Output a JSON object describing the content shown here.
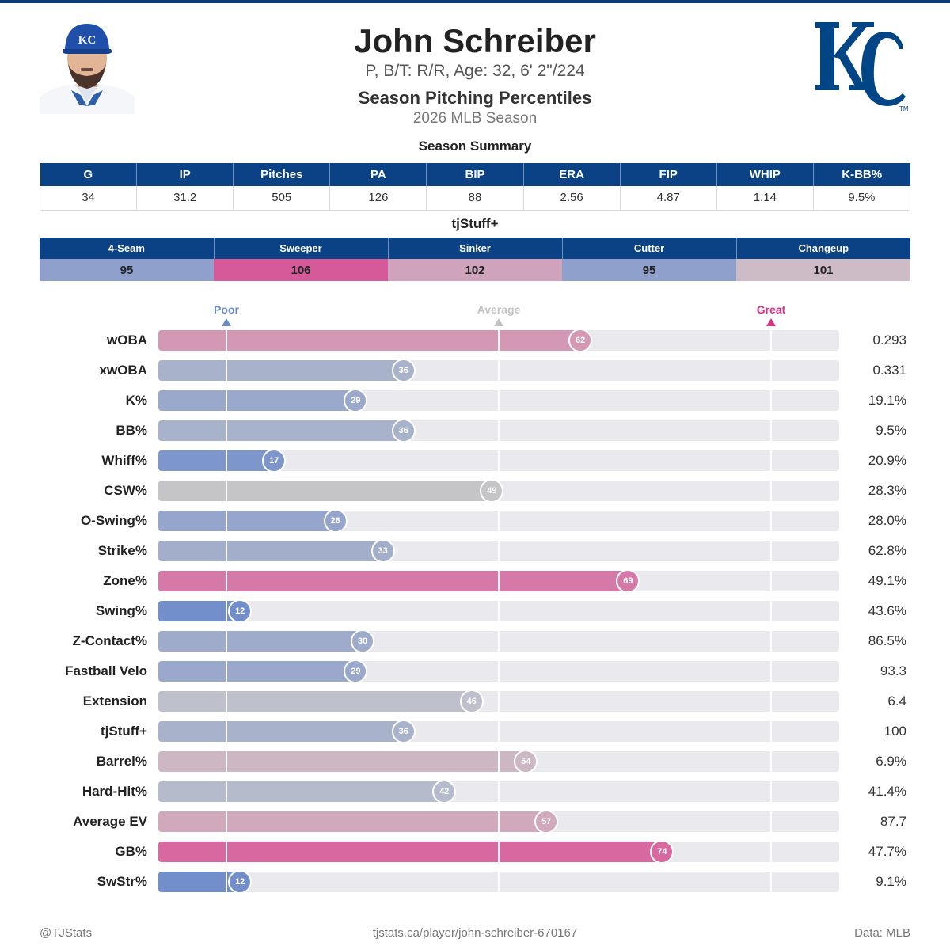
{
  "player": {
    "name": "John Schreiber",
    "info": "P, B/T: R/R, Age: 32, 6' 2\"/224"
  },
  "report": {
    "title": "Season Pitching Percentiles",
    "season": "2026 MLB Season"
  },
  "summary": {
    "title": "Season Summary",
    "headers": [
      "G",
      "IP",
      "Pitches",
      "PA",
      "BIP",
      "ERA",
      "FIP",
      "WHIP",
      "K-BB%"
    ],
    "values": [
      "34",
      "31.2",
      "505",
      "126",
      "88",
      "2.56",
      "4.87",
      "1.14",
      "9.5%"
    ]
  },
  "tjstuff": {
    "title": "tjStuff+",
    "pitches": [
      {
        "name": "4-Seam",
        "value": "95",
        "color": "#8fa0cc"
      },
      {
        "name": "Sweeper",
        "value": "106",
        "color": "#d65a9a"
      },
      {
        "name": "Sinker",
        "value": "102",
        "color": "#cfa3bb"
      },
      {
        "name": "Cutter",
        "value": "95",
        "color": "#8fa0cc"
      },
      {
        "name": "Changeup",
        "value": "101",
        "color": "#cdbcc6"
      }
    ]
  },
  "chart_data": {
    "type": "bar",
    "xlim": [
      0,
      100
    ],
    "legend": [
      {
        "label": "Poor",
        "percentile": 10,
        "color": "#6b8cc7"
      },
      {
        "label": "Average",
        "percentile": 50,
        "color": "#c4c4c4"
      },
      {
        "label": "Great",
        "percentile": 90,
        "color": "#d63384"
      }
    ],
    "metrics": [
      {
        "label": "wOBA",
        "percentile": 62,
        "value": "0.293",
        "color": "#d398b4"
      },
      {
        "label": "xwOBA",
        "percentile": 36,
        "value": "0.331",
        "color": "#a8b2cb"
      },
      {
        "label": "K%",
        "percentile": 29,
        "value": "19.1%",
        "color": "#9aa8cb"
      },
      {
        "label": "BB%",
        "percentile": 36,
        "value": "9.5%",
        "color": "#a8b2cb"
      },
      {
        "label": "Whiff%",
        "percentile": 17,
        "value": "20.9%",
        "color": "#7d96cc"
      },
      {
        "label": "CSW%",
        "percentile": 49,
        "value": "28.3%",
        "color": "#c5c5c8"
      },
      {
        "label": "O-Swing%",
        "percentile": 26,
        "value": "28.0%",
        "color": "#95a5cc"
      },
      {
        "label": "Strike%",
        "percentile": 33,
        "value": "62.8%",
        "color": "#a3aecb"
      },
      {
        "label": "Zone%",
        "percentile": 69,
        "value": "49.1%",
        "color": "#d57aa8"
      },
      {
        "label": "Swing%",
        "percentile": 12,
        "value": "43.6%",
        "color": "#738fcb"
      },
      {
        "label": "Z-Contact%",
        "percentile": 30,
        "value": "86.5%",
        "color": "#9eabcb"
      },
      {
        "label": "Fastball Velo",
        "percentile": 29,
        "value": "93.3",
        "color": "#9aa8cb"
      },
      {
        "label": "Extension",
        "percentile": 46,
        "value": "6.4",
        "color": "#bec1cb"
      },
      {
        "label": "tjStuff+",
        "percentile": 36,
        "value": "100",
        "color": "#a8b2cb"
      },
      {
        "label": "Barrel%",
        "percentile": 54,
        "value": "6.9%",
        "color": "#cdb7c2"
      },
      {
        "label": "Hard-Hit%",
        "percentile": 42,
        "value": "41.4%",
        "color": "#b5bbcb"
      },
      {
        "label": "Average EV",
        "percentile": 57,
        "value": "87.7",
        "color": "#d0a9bd"
      },
      {
        "label": "GB%",
        "percentile": 74,
        "value": "47.7%",
        "color": "#d868a0"
      },
      {
        "label": "SwStr%",
        "percentile": 12,
        "value": "9.1%",
        "color": "#738fcb"
      }
    ]
  },
  "footer": {
    "handle": "@TJStats",
    "url": "tjstats.ca/player/john-schreiber-670167",
    "source": "Data: MLB"
  },
  "colors": {
    "header_blue": "#0a4285",
    "royals_blue": "#004687"
  }
}
